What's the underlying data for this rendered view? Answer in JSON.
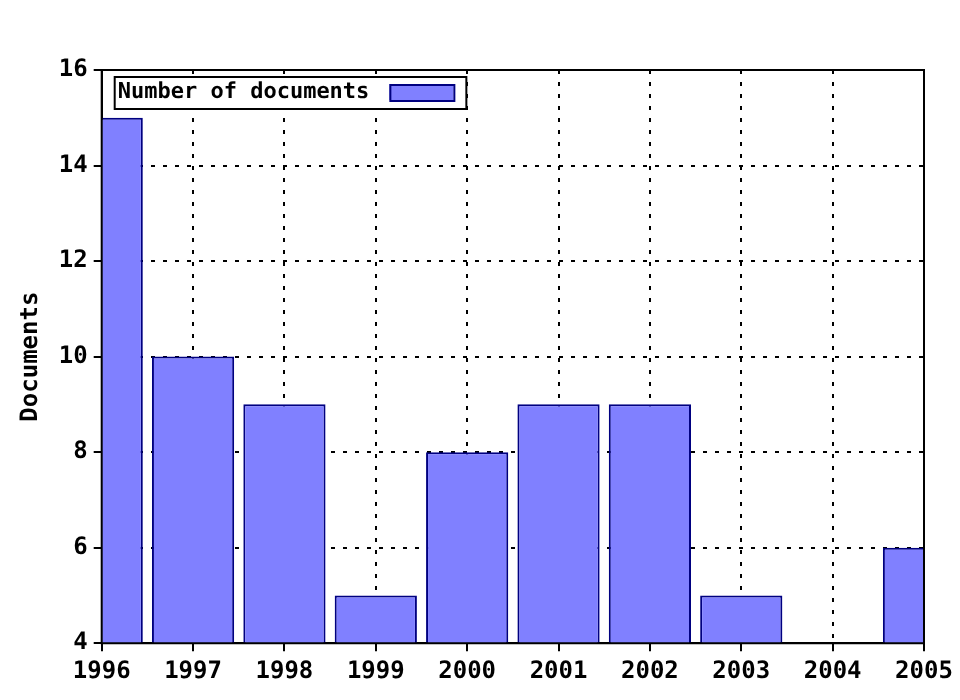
{
  "chart_data": {
    "type": "bar",
    "ylabel": "Documents",
    "x": [
      1996,
      1997,
      1998,
      1999,
      2000,
      2001,
      2002,
      2003,
      2004,
      2005
    ],
    "series": [
      {
        "name": "Number of documents",
        "color": "#8080ff",
        "values": [
          15,
          10,
          9,
          5,
          8,
          9,
          9,
          5,
          null,
          6
        ]
      }
    ],
    "xlim": [
      1996,
      2005
    ],
    "xticks": [
      1996,
      1997,
      1998,
      1999,
      2000,
      2001,
      2002,
      2003,
      2004,
      2005
    ],
    "ylim": [
      4,
      16
    ],
    "yticks": [
      4,
      6,
      8,
      10,
      12,
      14,
      16
    ],
    "grid": true,
    "legend": "top left"
  }
}
